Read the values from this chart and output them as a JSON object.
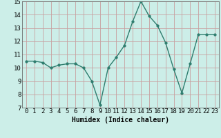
{
  "x": [
    0,
    1,
    2,
    3,
    4,
    5,
    6,
    7,
    8,
    9,
    10,
    11,
    12,
    13,
    14,
    15,
    16,
    17,
    18,
    19,
    20,
    21,
    22,
    23
  ],
  "y": [
    10.5,
    10.5,
    10.4,
    10.0,
    10.2,
    10.3,
    10.3,
    10.0,
    9.0,
    7.2,
    10.0,
    10.8,
    11.7,
    13.5,
    15.0,
    13.9,
    13.2,
    11.9,
    9.9,
    8.1,
    10.3,
    12.5,
    12.5,
    12.5
  ],
  "line_color": "#2e7d6e",
  "marker": "o",
  "markersize": 2.5,
  "linewidth": 1.0,
  "xlabel": "Humidex (Indice chaleur)",
  "xlim": [
    -0.5,
    23.5
  ],
  "ylim": [
    7,
    15
  ],
  "yticks": [
    7,
    8,
    9,
    10,
    11,
    12,
    13,
    14,
    15
  ],
  "xticks": [
    0,
    1,
    2,
    3,
    4,
    5,
    6,
    7,
    8,
    9,
    10,
    11,
    12,
    13,
    14,
    15,
    16,
    17,
    18,
    19,
    20,
    21,
    22,
    23
  ],
  "bg_color": "#cceee8",
  "grid_color": "#c8a0a0",
  "grid_linewidth": 0.6,
  "xlabel_fontsize": 7,
  "tick_fontsize": 6.5
}
